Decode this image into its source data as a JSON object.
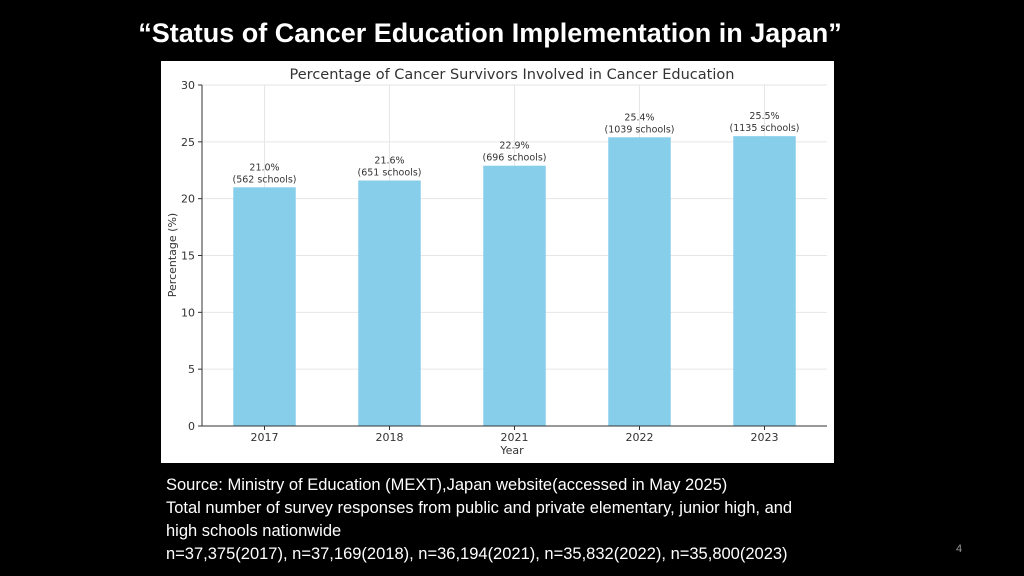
{
  "slide": {
    "title": "“Status of Cancer Education Implementation in Japan”",
    "page_number": "4"
  },
  "source": {
    "lines": [
      "Source: Ministry of Education (MEXT),Japan website(accessed in May 2025)",
      "Total number of survey responses from public and private elementary, junior high, and",
      "high schools nationwide",
      "n=37,375(2017), n=37,169(2018), n=36,194(2021), n=35,832(2022), n=35,800(2023)"
    ]
  },
  "colors": {
    "bar": "#87ceeb",
    "background": "#000000",
    "panel": "#ffffff"
  },
  "chart_data": {
    "type": "bar",
    "title": "Percentage of Cancer Survivors Involved in Cancer Education",
    "xlabel": "Year",
    "ylabel": "Percentage (%)",
    "categories": [
      "2017",
      "2018",
      "2021",
      "2022",
      "2023"
    ],
    "values": [
      21.0,
      21.6,
      22.9,
      25.4,
      25.5
    ],
    "value_labels": [
      "21.0%",
      "21.6%",
      "22.9%",
      "25.4%",
      "25.5%"
    ],
    "school_labels": [
      "(562 schools)",
      "(651 schools)",
      "(696 schools)",
      "(1039 schools)",
      "(1135 schools)"
    ],
    "yticks": [
      0,
      5,
      10,
      15,
      20,
      25,
      30
    ],
    "ylim": [
      0,
      30
    ],
    "grid": true
  }
}
